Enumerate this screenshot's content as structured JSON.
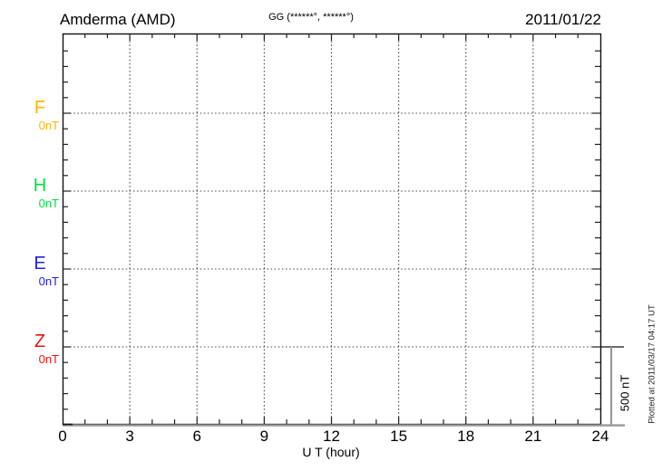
{
  "header": {
    "station_title": "Amderma (AMD)",
    "coordinates": "GG (******°, ******°)",
    "date": "2011/01/22"
  },
  "plot": {
    "channels": [
      {
        "label": "F",
        "offset_label": "0nT",
        "color": "#FFB400"
      },
      {
        "label": "H",
        "offset_label": "0nT",
        "color": "#00E040"
      },
      {
        "label": "E",
        "offset_label": "0nT",
        "color": "#2222E0"
      },
      {
        "label": "Z",
        "offset_label": "0nT",
        "color": "#F01010"
      }
    ],
    "x_axis": {
      "label": "U T (hour)",
      "tick_labels": [
        "0",
        "3",
        "6",
        "9",
        "12",
        "15",
        "18",
        "21",
        "24"
      ]
    },
    "scale_bar_label": "500 nT"
  },
  "footer_note": "Plotted at 2011/03/17 04:17 UT",
  "colors": {
    "frame": "#111111",
    "grid": "#444444",
    "bottom_axis": "#999999",
    "tick": "#222222"
  },
  "chart_data": {
    "type": "line",
    "title": "Amderma (AMD)",
    "subtitle": "GG (******°, ******°)",
    "date": "2011/01/22",
    "xlabel": "U T (hour)",
    "ylabel": "",
    "x_range": [
      0,
      24
    ],
    "x_ticks": [
      0,
      3,
      6,
      9,
      12,
      15,
      18,
      21,
      24
    ],
    "x_minor_tick_interval_hours": 1,
    "grid": "dotted vertical lines every 3 hours; dotted horizontal line at each channel baseline",
    "legend_position": "left margin, one colored label per channel",
    "y_scale": {
      "nT_per_division": 500,
      "minor_tick_nT": 100,
      "scale_bar_label": "500 nT"
    },
    "series": [
      {
        "name": "F",
        "baseline_nT": 0,
        "color": "#FFB400",
        "values": []
      },
      {
        "name": "H",
        "baseline_nT": 0,
        "color": "#00E040",
        "values": []
      },
      {
        "name": "E",
        "baseline_nT": 0,
        "color": "#2222E0",
        "values": []
      },
      {
        "name": "Z",
        "baseline_nT": 0,
        "color": "#F01010",
        "values": []
      }
    ],
    "annotations": [
      "Plotted at 2011/03/17 04:17 UT"
    ],
    "note": "No trace data is drawn in the plot area; every channel baseline is labeled 0nT"
  }
}
